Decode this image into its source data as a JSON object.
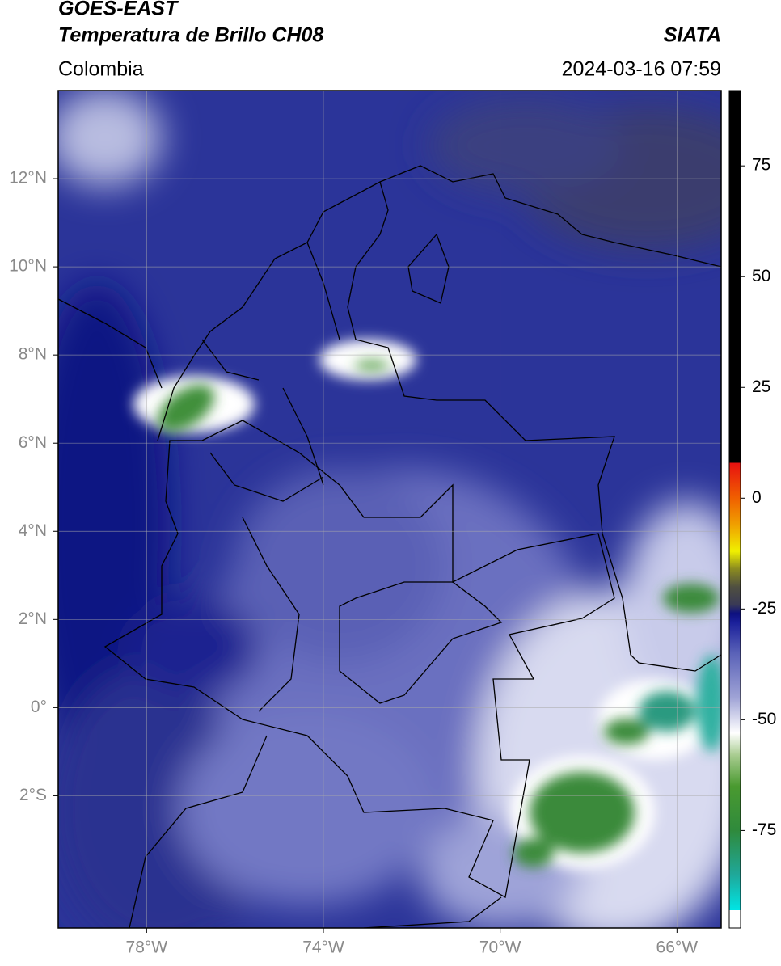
{
  "header": {
    "title": "GOES-EAST",
    "subtitle": "Temperatura de Brillo CH08",
    "region": "Colombia",
    "agency": "SIATA",
    "date": "2024-03-16 07:59"
  },
  "map": {
    "xlim": [
      -80,
      -65
    ],
    "ylim": [
      -5,
      14
    ],
    "xticks": [
      {
        "value": -78,
        "label": "78°W"
      },
      {
        "value": -74,
        "label": "74°W"
      },
      {
        "value": -70,
        "label": "70°W"
      },
      {
        "value": -66,
        "label": "66°W"
      }
    ],
    "yticks": [
      {
        "value": 12,
        "label": "12°N"
      },
      {
        "value": 10,
        "label": "10°N"
      },
      {
        "value": 8,
        "label": "8°N"
      },
      {
        "value": 6,
        "label": "6°N"
      },
      {
        "value": 4,
        "label": "4°N"
      },
      {
        "value": 2,
        "label": "2°N"
      },
      {
        "value": 0,
        "label": "0°"
      },
      {
        "value": -2,
        "label": "2°S"
      }
    ],
    "grid": true
  },
  "colorbar": {
    "lim": [
      -97,
      92
    ],
    "ticks": [
      75,
      50,
      25,
      0,
      -25,
      -50,
      -75
    ],
    "stops": [
      [
        -97,
        "#ffffff"
      ],
      [
        -93,
        "#ffffff"
      ],
      [
        -93,
        "#00e5e5"
      ],
      [
        -85,
        "#1fa89a"
      ],
      [
        -75,
        "#2f8a3c"
      ],
      [
        -65,
        "#4a9a30"
      ],
      [
        -58,
        "#a8cc90"
      ],
      [
        -53,
        "#ffffff"
      ],
      [
        -45,
        "#9fa3d6"
      ],
      [
        -35,
        "#5a62b8"
      ],
      [
        -28,
        "#1a1f9a"
      ],
      [
        -26,
        "#0d1080"
      ],
      [
        -24,
        "#3a3a55"
      ],
      [
        -20,
        "#505040"
      ],
      [
        -16,
        "#8a8a20"
      ],
      [
        -12,
        "#f0f000"
      ],
      [
        -6,
        "#f0a000"
      ],
      [
        0,
        "#f06000"
      ],
      [
        8,
        "#e81010"
      ],
      [
        8,
        "#000000"
      ],
      [
        92,
        "#000000"
      ]
    ]
  }
}
